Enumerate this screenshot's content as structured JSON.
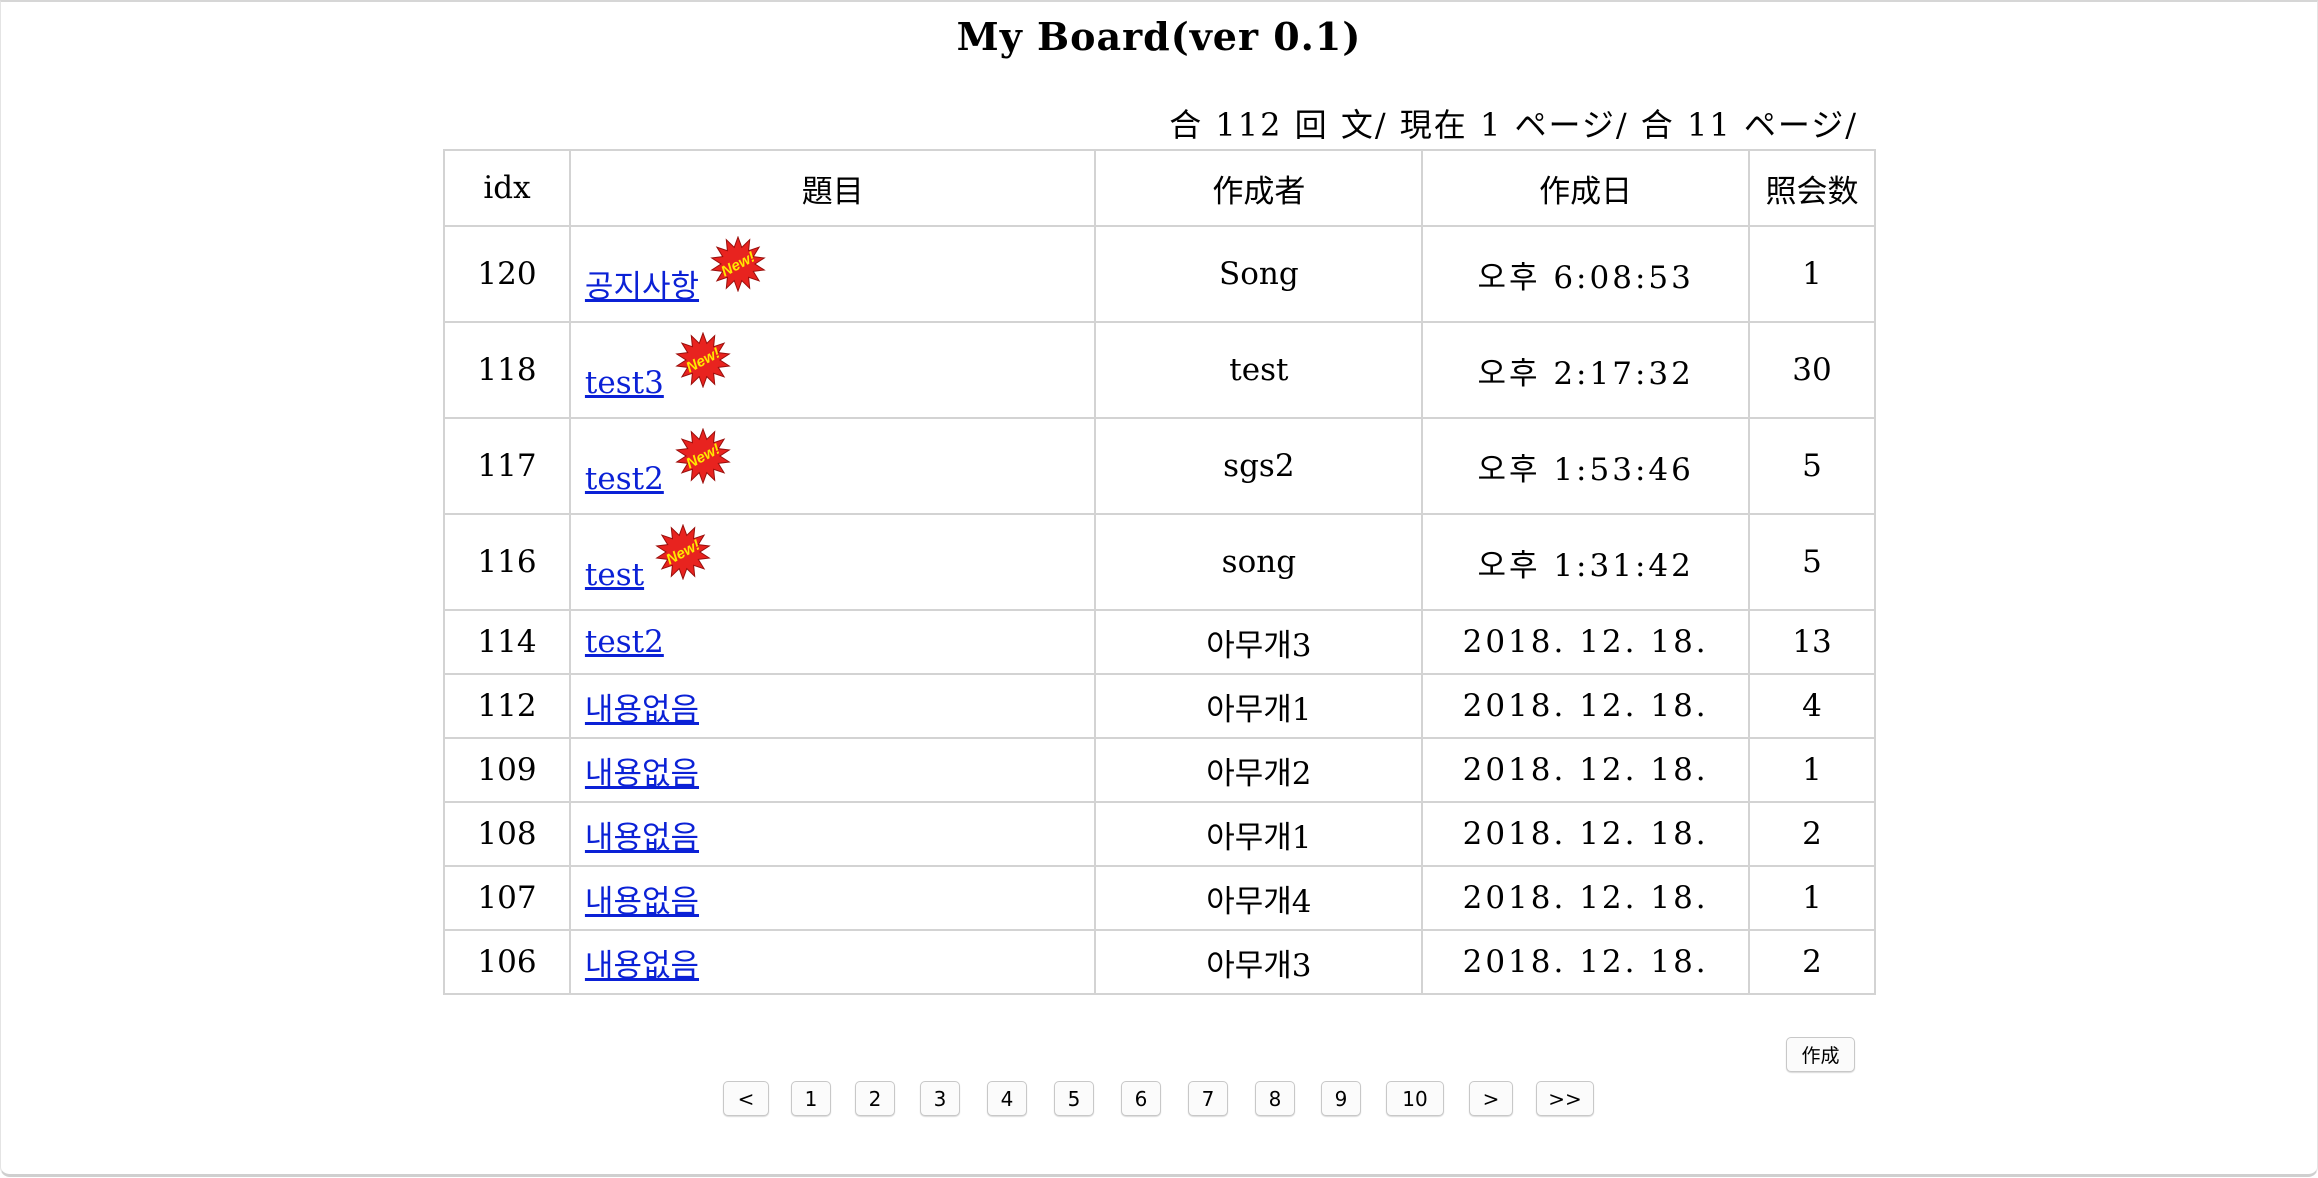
{
  "page": {
    "title": "My Board(ver 0.1)",
    "summary": "合 112 回 文/ 現在 1 ページ/ 合 11 ページ/"
  },
  "table": {
    "headers": [
      "idx",
      "題目",
      "作成者",
      "作成日",
      "照会数"
    ],
    "new_badge_text": "New!",
    "rows": [
      {
        "idx": "120",
        "title": "공지사항",
        "author": "Song",
        "date": "오후 6:08:53",
        "views": "1",
        "is_new": true
      },
      {
        "idx": "118",
        "title": "test3",
        "author": "test",
        "date": "오후 2:17:32",
        "views": "30",
        "is_new": true
      },
      {
        "idx": "117",
        "title": "test2",
        "author": "sgs2",
        "date": "오후 1:53:46",
        "views": "5",
        "is_new": true
      },
      {
        "idx": "116",
        "title": "test",
        "author": "song",
        "date": "오후 1:31:42",
        "views": "5",
        "is_new": true
      },
      {
        "idx": "114",
        "title": "test2",
        "author": "아무개3",
        "date": "2018. 12. 18.",
        "views": "13",
        "is_new": false
      },
      {
        "idx": "112",
        "title": "내용없음",
        "author": "아무개1",
        "date": "2018. 12. 18.",
        "views": "4",
        "is_new": false
      },
      {
        "idx": "109",
        "title": "내용없음",
        "author": "아무개2",
        "date": "2018. 12. 18.",
        "views": "1",
        "is_new": false
      },
      {
        "idx": "108",
        "title": "내용없음",
        "author": "아무개1",
        "date": "2018. 12. 18.",
        "views": "2",
        "is_new": false
      },
      {
        "idx": "107",
        "title": "내용없음",
        "author": "아무개4",
        "date": "2018. 12. 18.",
        "views": "1",
        "is_new": false
      },
      {
        "idx": "106",
        "title": "내용없음",
        "author": "아무개3",
        "date": "2018. 12. 18.",
        "views": "2",
        "is_new": false
      }
    ]
  },
  "actions": {
    "write_label": "作成"
  },
  "pagination": {
    "prev_label": "<",
    "pages": [
      "1",
      "2",
      "3",
      "4",
      "5",
      "6",
      "7",
      "8",
      "9",
      "10"
    ],
    "next_label": ">",
    "last_label": ">>"
  },
  "colors": {
    "link": "#0b21d6",
    "badge_fill": "#e8231f",
    "badge_text": "#ffe800",
    "grid": "#d3d3d3"
  }
}
